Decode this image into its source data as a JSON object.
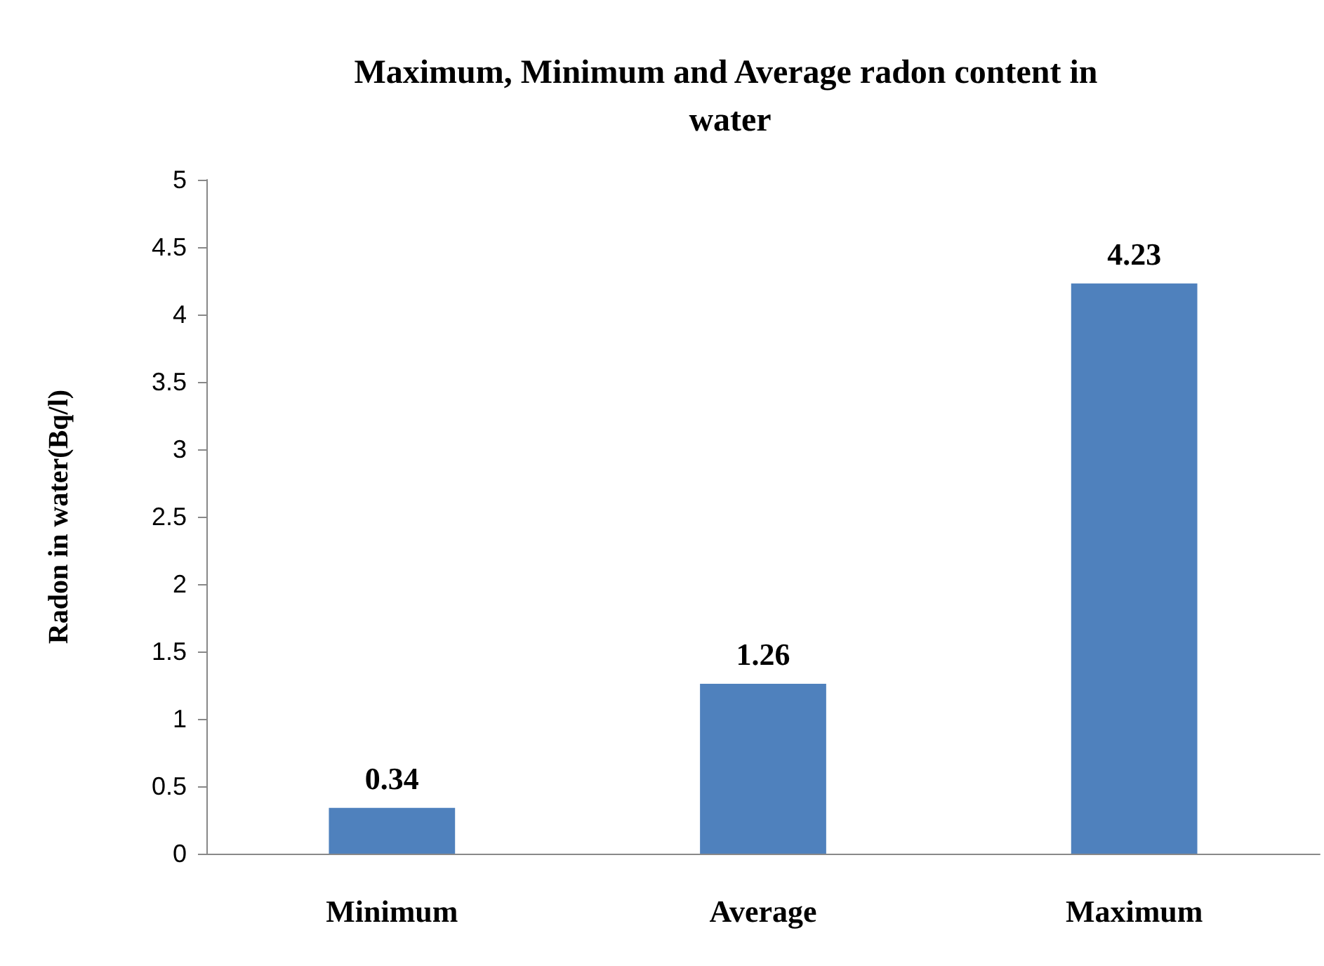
{
  "chart_data": {
    "type": "bar",
    "title": "Maximum, Minimum and Average radon content in water",
    "ylabel": "Radon in water(Bq/l)",
    "categories": [
      "Minimum",
      "Average",
      "Maximum"
    ],
    "values": [
      0.34,
      1.26,
      4.23
    ],
    "color": "#4f81bd",
    "ylim": [
      0,
      5
    ],
    "yticks": [
      0,
      0.5,
      1,
      1.5,
      2,
      2.5,
      3,
      3.5,
      4,
      4.5,
      5
    ],
    "grid": false,
    "data_labels": true
  }
}
